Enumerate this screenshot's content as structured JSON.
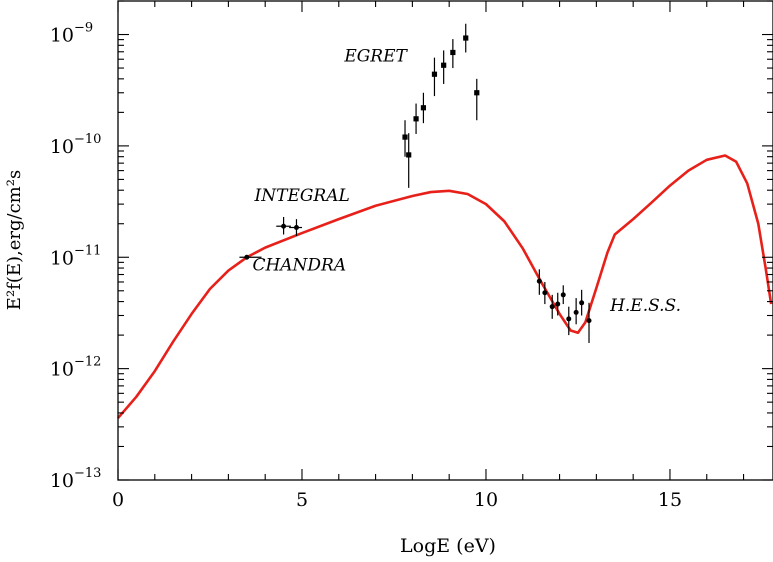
{
  "chart_data": {
    "type": "scatter",
    "title": "",
    "xlabel": "LogE (eV)",
    "ylabel": "E²f(E),erg/cm²s",
    "xlim": [
      0,
      17.8
    ],
    "ylim": [
      1e-13,
      2e-09
    ],
    "yscale": "log",
    "grid": false,
    "x_ticks": [
      {
        "value": 0,
        "label": "0"
      },
      {
        "value": 5,
        "label": "5"
      },
      {
        "value": 10,
        "label": "10"
      },
      {
        "value": 15,
        "label": "15"
      }
    ],
    "y_ticks": [
      {
        "value": 1e-13,
        "label": "10",
        "exp": "−13"
      },
      {
        "value": 1e-12,
        "label": "10",
        "exp": "−12"
      },
      {
        "value": 1e-11,
        "label": "10",
        "exp": "−11"
      },
      {
        "value": 1e-10,
        "label": "10",
        "exp": "−10"
      },
      {
        "value": 1e-09,
        "label": "10",
        "exp": "−9"
      }
    ],
    "series": [
      {
        "name": "EGRET",
        "marker": "square",
        "points": [
          {
            "x": 7.8,
            "y": 1.2e-10,
            "ylo": 8e-11,
            "yhi": 1.7e-10
          },
          {
            "x": 7.9,
            "y": 8.3e-11,
            "ylo": 4.2e-11,
            "yhi": 1.3e-10
          },
          {
            "x": 8.1,
            "y": 1.75e-10,
            "ylo": 1.28e-10,
            "yhi": 2.4e-10
          },
          {
            "x": 8.3,
            "y": 2.2e-10,
            "ylo": 1.6e-10,
            "yhi": 3e-10
          },
          {
            "x": 8.6,
            "y": 4.4e-10,
            "ylo": 2.8e-10,
            "yhi": 6.2e-10
          },
          {
            "x": 8.85,
            "y": 5.3e-10,
            "ylo": 3.6e-10,
            "yhi": 7.2e-10
          },
          {
            "x": 9.1,
            "y": 6.9e-10,
            "ylo": 5e-10,
            "yhi": 9.1e-10
          },
          {
            "x": 9.45,
            "y": 9.3e-10,
            "ylo": 6.9e-10,
            "yhi": 1.25e-09
          },
          {
            "x": 9.75,
            "y": 3e-10,
            "ylo": 1.7e-10,
            "yhi": 4e-10
          }
        ]
      },
      {
        "name": "INTEGRAL",
        "marker": "circle",
        "points": [
          {
            "x": 4.5,
            "y": 1.9e-11,
            "ylo": 1.6e-11,
            "yhi": 2.3e-11,
            "xlo": 4.3,
            "xhi": 4.7
          },
          {
            "x": 4.85,
            "y": 1.85e-11,
            "ylo": 1.55e-11,
            "yhi": 2.2e-11,
            "xlo": 4.65,
            "xhi": 5.0
          }
        ]
      },
      {
        "name": "CHANDRA",
        "marker": "circle",
        "points": [
          {
            "x": 3.5,
            "y": 1e-11,
            "xlo": 3.3,
            "xhi": 3.9
          }
        ]
      },
      {
        "name": "H.E.S.S.",
        "marker": "circle",
        "points": [
          {
            "x": 11.45,
            "y": 6.1e-12,
            "ylo": 4.6e-12,
            "yhi": 7.8e-12
          },
          {
            "x": 11.6,
            "y": 4.8e-12,
            "ylo": 3.8e-12,
            "yhi": 6e-12
          },
          {
            "x": 11.8,
            "y": 3.6e-12,
            "ylo": 2.8e-12,
            "yhi": 4.6e-12
          },
          {
            "x": 11.95,
            "y": 3.8e-12,
            "ylo": 3e-12,
            "yhi": 4.8e-12
          },
          {
            "x": 12.1,
            "y": 4.6e-12,
            "ylo": 3.8e-12,
            "yhi": 5.6e-12
          },
          {
            "x": 12.25,
            "y": 2.8e-12,
            "ylo": 2e-12,
            "yhi": 3.6e-12
          },
          {
            "x": 12.45,
            "y": 3.2e-12,
            "ylo": 2.5e-12,
            "yhi": 4.3e-12
          },
          {
            "x": 12.6,
            "y": 3.9e-12,
            "ylo": 3e-12,
            "yhi": 5.1e-12
          },
          {
            "x": 12.8,
            "y": 2.7e-12,
            "ylo": 1.7e-12,
            "yhi": 3.9e-12
          }
        ]
      },
      {
        "type": "line",
        "color": "#e8201a",
        "points": [
          {
            "x": 0.0,
            "y": 3.6e-13
          },
          {
            "x": 0.5,
            "y": 5.6e-13
          },
          {
            "x": 1.0,
            "y": 9.5e-13
          },
          {
            "x": 1.5,
            "y": 1.75e-12
          },
          {
            "x": 2.0,
            "y": 3.1e-12
          },
          {
            "x": 2.5,
            "y": 5.2e-12
          },
          {
            "x": 3.0,
            "y": 7.6e-12
          },
          {
            "x": 3.5,
            "y": 1e-11
          },
          {
            "x": 4.0,
            "y": 1.22e-11
          },
          {
            "x": 5.0,
            "y": 1.65e-11
          },
          {
            "x": 6.0,
            "y": 2.2e-11
          },
          {
            "x": 7.0,
            "y": 2.9e-11
          },
          {
            "x": 8.0,
            "y": 3.55e-11
          },
          {
            "x": 8.5,
            "y": 3.85e-11
          },
          {
            "x": 9.0,
            "y": 3.95e-11
          },
          {
            "x": 9.5,
            "y": 3.7e-11
          },
          {
            "x": 10.0,
            "y": 3e-11
          },
          {
            "x": 10.5,
            "y": 2.1e-11
          },
          {
            "x": 11.0,
            "y": 1.2e-11
          },
          {
            "x": 11.5,
            "y": 6e-12
          },
          {
            "x": 12.0,
            "y": 3.1e-12
          },
          {
            "x": 12.3,
            "y": 2.2e-12
          },
          {
            "x": 12.5,
            "y": 2.1e-12
          },
          {
            "x": 12.7,
            "y": 2.6e-12
          },
          {
            "x": 13.0,
            "y": 5.3e-12
          },
          {
            "x": 13.3,
            "y": 1.1e-11
          },
          {
            "x": 13.5,
            "y": 1.6e-11
          },
          {
            "x": 14.0,
            "y": 2.2e-11
          },
          {
            "x": 14.5,
            "y": 3.1e-11
          },
          {
            "x": 15.0,
            "y": 4.4e-11
          },
          {
            "x": 15.5,
            "y": 6e-11
          },
          {
            "x": 16.0,
            "y": 7.5e-11
          },
          {
            "x": 16.5,
            "y": 8.2e-11
          },
          {
            "x": 16.8,
            "y": 7.2e-11
          },
          {
            "x": 17.1,
            "y": 4.6e-11
          },
          {
            "x": 17.4,
            "y": 2e-11
          },
          {
            "x": 17.6,
            "y": 8e-12
          },
          {
            "x": 17.75,
            "y": 3.8e-12
          }
        ]
      }
    ],
    "annotations": [
      {
        "text": "EGRET",
        "x": 7.85,
        "y": 5.7e-10
      },
      {
        "text": "INTEGRAL",
        "x": 6.3,
        "y": 3.2e-11
      },
      {
        "text": "CHANDRA",
        "x": 6.2,
        "y": 7.6e-12
      },
      {
        "text": "H.E.S.S.",
        "x": 15.3,
        "y": 3.3e-12
      }
    ]
  }
}
